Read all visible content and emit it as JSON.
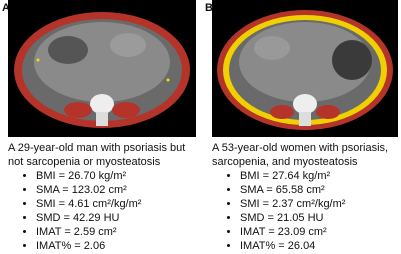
{
  "panels": [
    {
      "label": "A",
      "caption": "A 29-year-old man with psoriasis but not sarcopenia or myosteatosis",
      "items": [
        "BMI = 26.70 kg/m²",
        "SMA = 123.02 cm²",
        "SMI = 4.61 cm²/kg/m²",
        "SMD = 42.29 HU",
        "IMAT = 2.59 cm²",
        "IMAT% = 2.06"
      ]
    },
    {
      "label": "B",
      "caption": "A 53-year-old women with psoriasis, sarcopenia, and myosteatosis",
      "items": [
        "BMI = 27.64 kg/m²",
        "SMA = 65.58 cm²",
        "SMI = 2.37 cm²/kg/m²",
        "SMD = 21.05 HU",
        "IMAT = 23.09 cm²",
        "IMAT% = 26.04"
      ]
    }
  ]
}
